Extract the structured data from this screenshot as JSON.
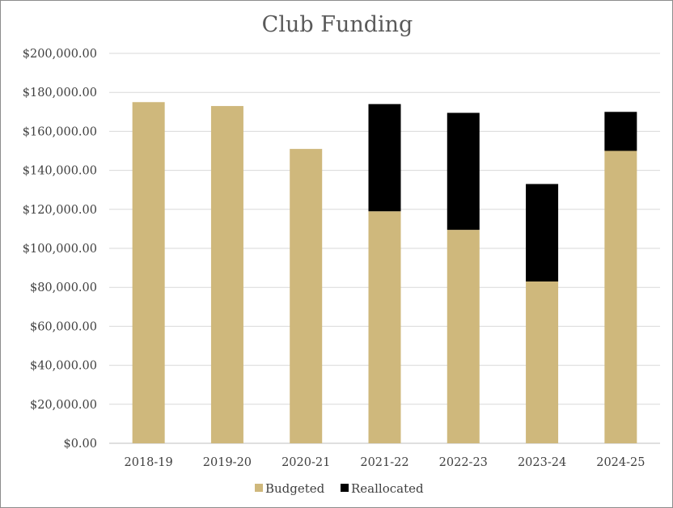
{
  "chart_data": {
    "type": "bar",
    "stacked": true,
    "title": "Club Funding",
    "xlabel": "",
    "ylabel": "",
    "categories": [
      "2018-19",
      "2019-20",
      "2020-21",
      "2021-22",
      "2022-23",
      "2023-24",
      "2024-25"
    ],
    "series": [
      {
        "name": "Budgeted",
        "color": "#cfb87c",
        "values": [
          175000,
          173000,
          151000,
          119000,
          109500,
          83000,
          150000
        ]
      },
      {
        "name": "Reallocated",
        "color": "#000000",
        "values": [
          0,
          0,
          0,
          55000,
          60000,
          50000,
          20000
        ]
      }
    ],
    "ylim": [
      0,
      200000
    ],
    "yticks": [
      "$0.00",
      "$20,000.00",
      "$40,000.00",
      "$60,000.00",
      "$80,000.00",
      "$100,000.00",
      "$120,000.00",
      "$140,000.00",
      "$160,000.00",
      "$180,000.00",
      "$200,000.00"
    ],
    "grid": true,
    "legend_position": "bottom"
  }
}
